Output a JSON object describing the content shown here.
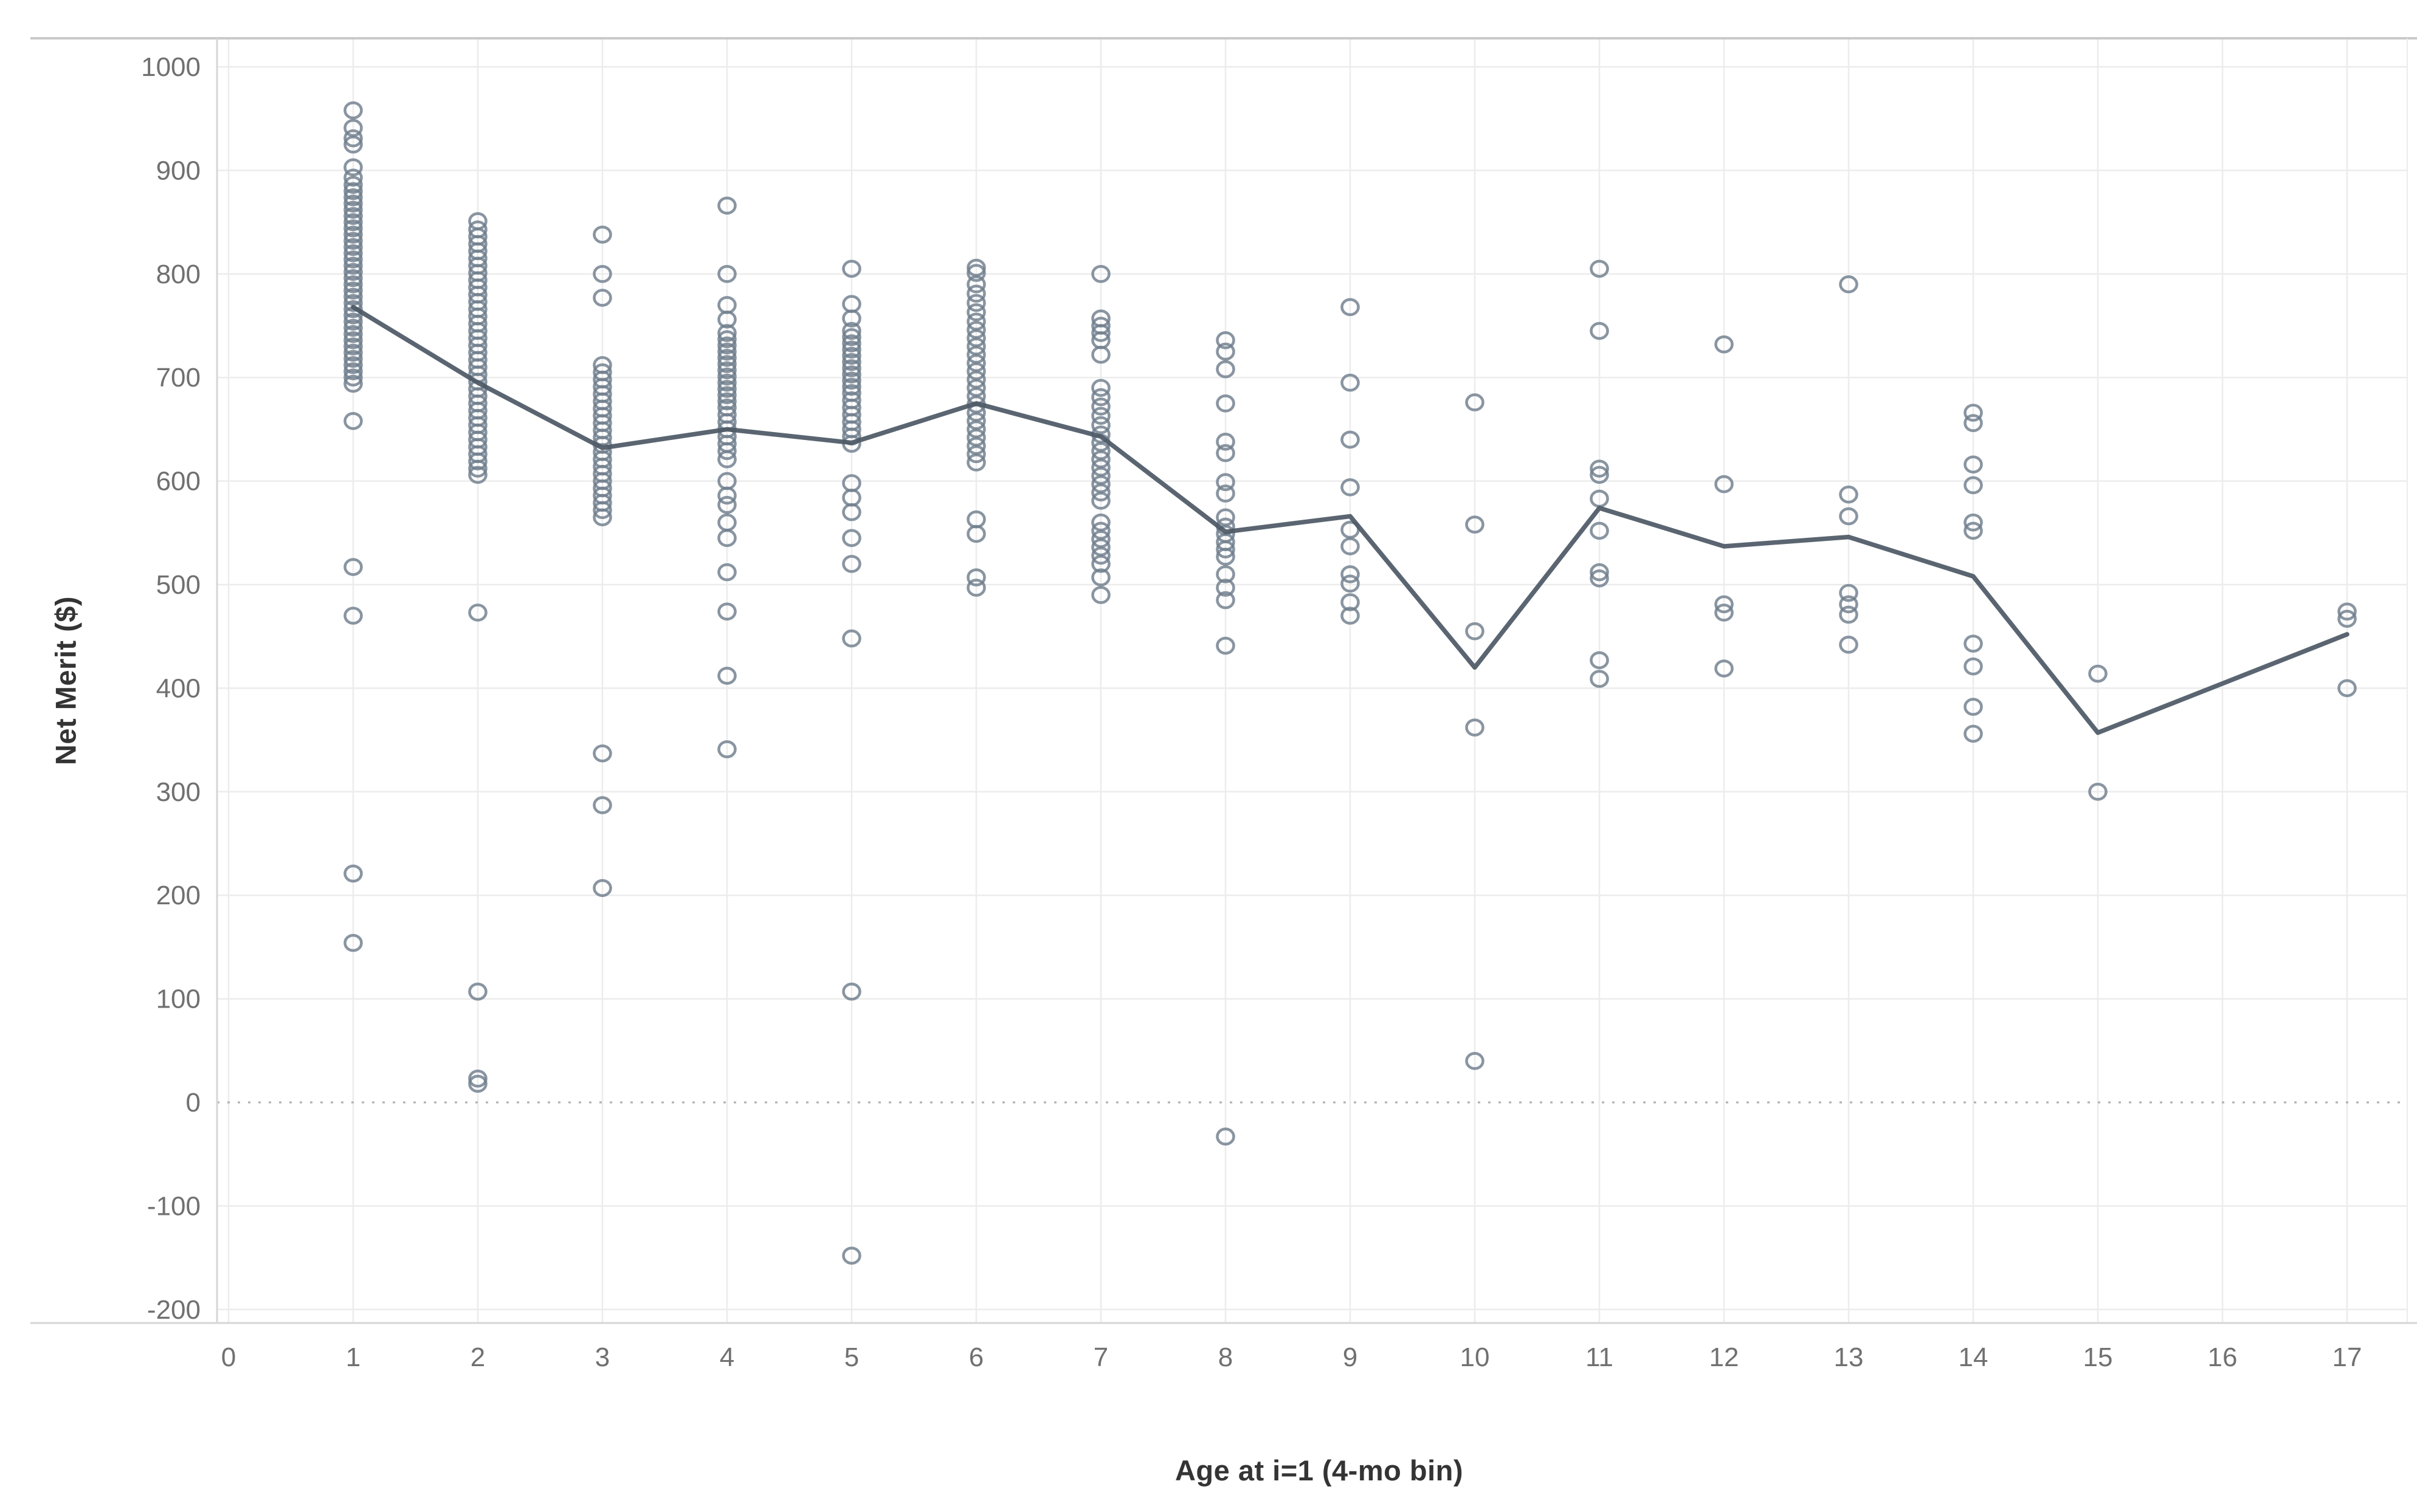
{
  "chart_data": {
    "type": "scatter",
    "title": "",
    "xlabel": "Age at i=1 (4-mo bin)",
    "ylabel": "Net Merit ($)",
    "x_ticks": [
      "0",
      "1",
      "2",
      "3",
      "4",
      "5",
      "6",
      "7",
      "8",
      "9",
      "10",
      "11",
      "12",
      "13",
      "14",
      "15",
      "16",
      "17"
    ],
    "y_ticks": [
      -200,
      -100,
      0,
      100,
      200,
      300,
      400,
      500,
      600,
      700,
      800,
      900,
      1000
    ],
    "xlim": [
      0,
      17.6
    ],
    "ylim": [
      -200,
      1000
    ],
    "grid": true,
    "zero_line": "dotted",
    "legend": "none",
    "scatter": [
      {
        "x": 1,
        "values": [
          958,
          941,
          931,
          925,
          903,
          893,
          886,
          880,
          874,
          868,
          862,
          856,
          850,
          844,
          838,
          832,
          826,
          820,
          814,
          808,
          802,
          796,
          790,
          784,
          778,
          772,
          766,
          760,
          754,
          748,
          742,
          736,
          730,
          724,
          718,
          712,
          706,
          700,
          694,
          658,
          517,
          470,
          221,
          154
        ]
      },
      {
        "x": 2,
        "values": [
          851,
          843,
          836,
          829,
          822,
          815,
          808,
          801,
          794,
          787,
          780,
          773,
          766,
          759,
          752,
          745,
          738,
          731,
          724,
          717,
          710,
          703,
          696,
          689,
          682,
          675,
          668,
          661,
          654,
          647,
          640,
          633,
          626,
          619,
          612,
          606,
          473,
          107,
          23,
          18
        ]
      },
      {
        "x": 3,
        "values": [
          838,
          800,
          777,
          712,
          705,
          698,
          691,
          684,
          677,
          670,
          663,
          656,
          649,
          642,
          635,
          628,
          621,
          614,
          607,
          600,
          593,
          586,
          579,
          572,
          565,
          337,
          287,
          207
        ]
      },
      {
        "x": 4,
        "values": [
          866,
          800,
          770,
          756,
          743,
          737,
          731,
          725,
          719,
          713,
          707,
          701,
          695,
          689,
          683,
          677,
          671,
          664,
          657,
          650,
          643,
          636,
          629,
          621,
          600,
          586,
          577,
          560,
          545,
          512,
          474,
          412,
          341
        ]
      },
      {
        "x": 5,
        "values": [
          805,
          771,
          757,
          745,
          739,
          733,
          727,
          721,
          715,
          709,
          703,
          697,
          691,
          685,
          678,
          671,
          664,
          657,
          650,
          643,
          636,
          598,
          584,
          570,
          545,
          520,
          448,
          107,
          -148
        ]
      },
      {
        "x": 6,
        "values": [
          806,
          801,
          790,
          781,
          772,
          763,
          754,
          746,
          738,
          730,
          722,
          714,
          706,
          698,
          690,
          682,
          674,
          666,
          658,
          650,
          642,
          634,
          626,
          618,
          563,
          549,
          507,
          497
        ]
      },
      {
        "x": 7,
        "values": [
          800,
          757,
          750,
          743,
          736,
          722,
          690,
          681,
          672,
          663,
          654,
          645,
          637,
          629,
          621,
          613,
          605,
          597,
          589,
          581,
          560,
          552,
          544,
          536,
          528,
          520,
          507,
          490
        ]
      },
      {
        "x": 8,
        "values": [
          736,
          725,
          708,
          675,
          638,
          627,
          599,
          588,
          565,
          556,
          549,
          541,
          534,
          527,
          510,
          497,
          485,
          441,
          -33
        ]
      },
      {
        "x": 9,
        "values": [
          768,
          695,
          640,
          594,
          553,
          537,
          510,
          501,
          483,
          470
        ]
      },
      {
        "x": 10,
        "values": [
          676,
          558,
          455,
          362,
          40
        ]
      },
      {
        "x": 11,
        "values": [
          805,
          745,
          612,
          606,
          583,
          552,
          512,
          506,
          427,
          409
        ]
      },
      {
        "x": 12,
        "values": [
          732,
          597,
          481,
          473,
          419
        ]
      },
      {
        "x": 13,
        "values": [
          790,
          587,
          566,
          492,
          481,
          471,
          442
        ]
      },
      {
        "x": 14,
        "values": [
          666,
          656,
          616,
          596,
          560,
          552,
          443,
          421,
          382,
          356
        ]
      },
      {
        "x": 15,
        "values": [
          414,
          300
        ]
      },
      {
        "x": 17,
        "values": [
          474,
          467,
          400
        ]
      }
    ],
    "series": [
      {
        "name": "trend",
        "type": "line",
        "x": [
          1,
          2,
          3,
          4,
          5,
          6,
          7,
          8,
          9,
          10,
          11,
          12,
          13,
          14,
          15,
          17
        ],
        "y": [
          768,
          695,
          632,
          650,
          637,
          675,
          643,
          551,
          566,
          420,
          574,
          537,
          546,
          508,
          357,
          452
        ]
      }
    ],
    "colors": {
      "marker": "#6f7e8c",
      "line": "#4d5966",
      "grid": "#ececec",
      "axis": "#d6d6d6",
      "top_border": "#c9c9c9",
      "zero_line": "#b3b3b3",
      "tick_text": "#707070",
      "title_text": "#343434",
      "background": "#ffffff"
    }
  }
}
